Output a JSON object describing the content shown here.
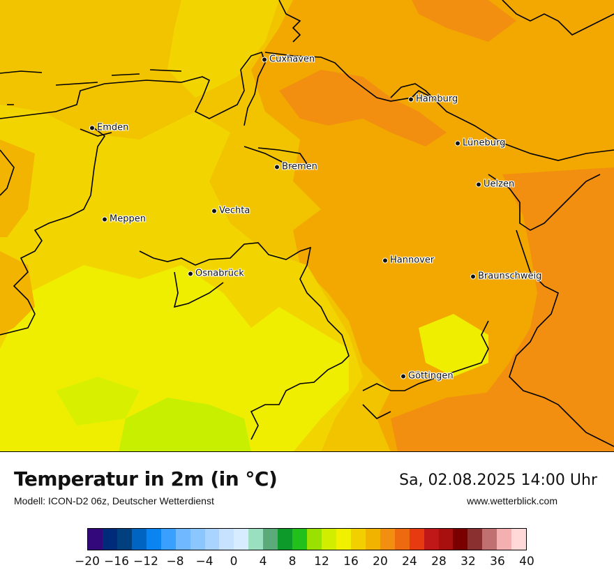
{
  "map": {
    "cities": [
      {
        "name": "Cuxhaven"
      },
      {
        "name": "Hamburg"
      },
      {
        "name": "Emden"
      },
      {
        "name": "Lüneburg"
      },
      {
        "name": "Bremen"
      },
      {
        "name": "Uelzen"
      },
      {
        "name": "Vechta"
      },
      {
        "name": "Meppen"
      },
      {
        "name": "Hannover"
      },
      {
        "name": "Osnabrück"
      },
      {
        "name": "Braunschweig"
      },
      {
        "name": "Göttingen"
      }
    ],
    "temperature_classes": {
      "green_16": "#c8ee00",
      "yellow_16_18": "#f0f000",
      "gold_18_20": "#f2d000",
      "orange_20_22": "#f2b200",
      "orange_22_24": "#f28e10",
      "red_24": "#ee6a10"
    },
    "border_color": "#000000"
  },
  "header": {
    "title": "Temperatur in 2m (in °C)",
    "subtitle": "Modell: ICON-D2 06z, Deutscher Wetterdienst",
    "datetime": "Sa, 02.08.2025 14:00 Uhr",
    "website": "www.wetterblick.com"
  },
  "legend": {
    "colors": [
      "#33087a",
      "#002a7a",
      "#00407e",
      "#0064c2",
      "#0a84f0",
      "#3aa0ff",
      "#70b8ff",
      "#8cc6ff",
      "#a8d4ff",
      "#c6e2ff",
      "#d8ecff",
      "#9ae0c0",
      "#5aaa7a",
      "#0e9a2a",
      "#22c01a",
      "#9ae000",
      "#d2ee00",
      "#f0f000",
      "#f2d000",
      "#f2b200",
      "#f28e10",
      "#ee6a10",
      "#e83a10",
      "#c01818",
      "#a81010",
      "#7a0000",
      "#8a3030",
      "#c07070",
      "#f4b0b0",
      "#ffd8d8"
    ],
    "ticks": [
      "−20",
      "−16",
      "−12",
      "−8",
      "−4",
      "0",
      "4",
      "8",
      "12",
      "16",
      "20",
      "24",
      "28",
      "32",
      "36",
      "40"
    ]
  }
}
